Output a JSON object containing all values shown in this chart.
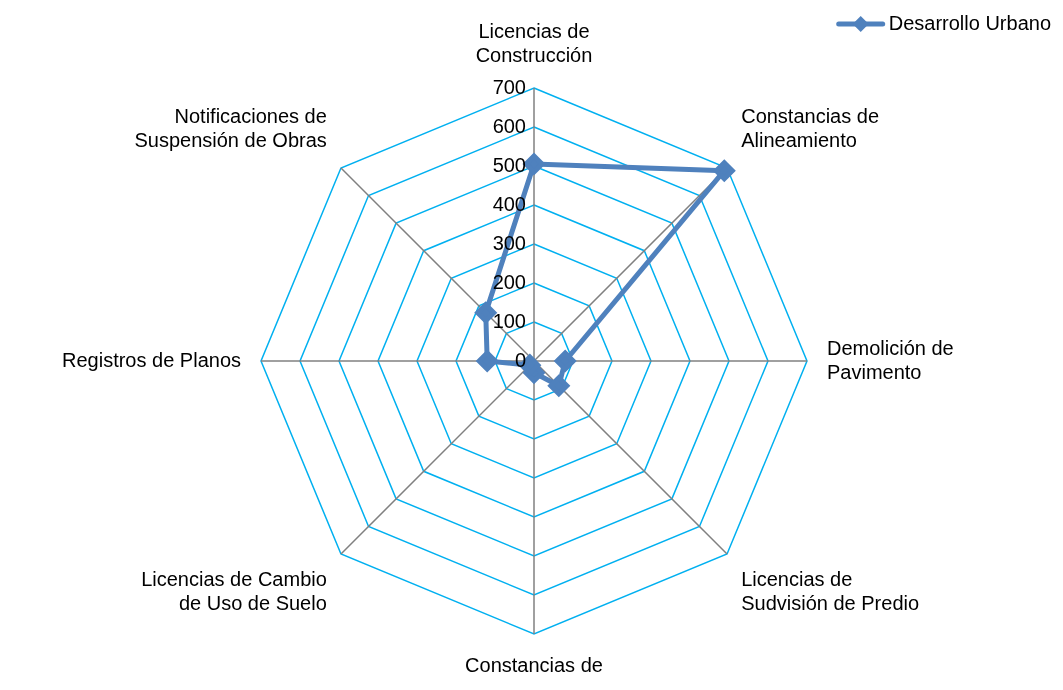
{
  "chart_data": {
    "type": "radar",
    "categories": [
      "Licencias de Construcción",
      "Constancias de Alineamiento",
      "Demolición de Pavimento",
      "Licencias de Sudvisión de Predio",
      "Constancias de",
      "Licencias de Cambio de Uso de Suelo",
      "Registros de Planos",
      "Notificaciones de Suspensión de Obras"
    ],
    "series": [
      {
        "name": "Desarrollo Urbano",
        "color": "#4f81bd",
        "values": [
          505,
          690,
          80,
          90,
          30,
          15,
          120,
          175
        ]
      }
    ],
    "ylim": [
      0,
      700
    ],
    "yticks": [
      0,
      100,
      200,
      300,
      400,
      500,
      600,
      700
    ],
    "grid": true,
    "legend": "top right",
    "marker": "diamond",
    "line_style": "solid"
  }
}
